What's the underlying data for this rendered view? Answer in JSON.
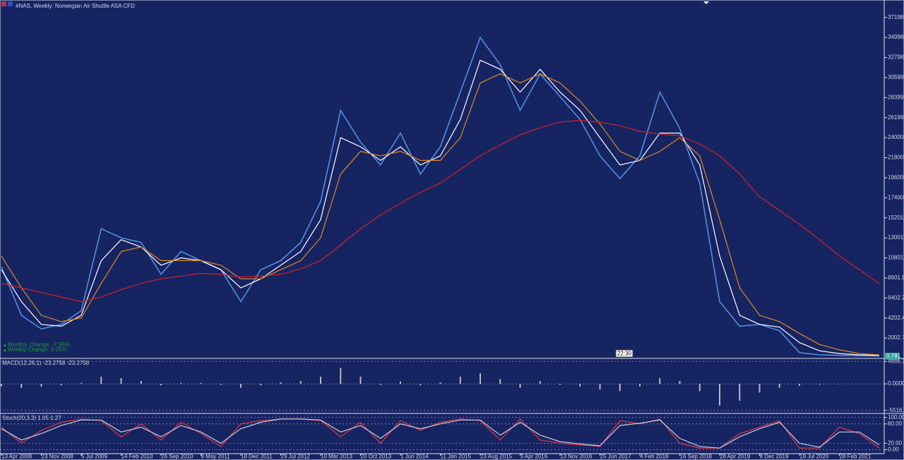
{
  "chart_data": [
    {
      "type": "line",
      "title": "#NAS, Weekly: Norwegian Air Shuttle ASA CFD",
      "categories": [
        "13 Apr 2008",
        null,
        "23 Nov 2008",
        null,
        "5 Jul 2009",
        null,
        "14 Feb 2010",
        null,
        "26 Sep 2010",
        null,
        "8 May 2011",
        null,
        "18 Dec 2011",
        null,
        "29 Jul 2012",
        null,
        "10 Mar 2013",
        null,
        "20 Oct 2013",
        null,
        "1 Jun 2014",
        null,
        "11 Jan 2015",
        null,
        "23 Aug 2015",
        null,
        "3 Apr 2016",
        null,
        "13 Nov 2016",
        null,
        "25 Jun 2017",
        null,
        "4 Feb 2018",
        null,
        "16 Sep 2018",
        null,
        "28 Apr 2019",
        null,
        "8 Dec 2019",
        null,
        "19 Jul 2020",
        null,
        "28 Feb 2021",
        null,
        null
      ],
      "series": [
        {
          "color": "#4f8fe0",
          "values": [
            9800,
            4500,
            3000,
            3500,
            5000,
            14000,
            13000,
            12500,
            9000,
            11500,
            10500,
            9500,
            6000,
            9500,
            10500,
            12500,
            17000,
            27000,
            23500,
            21000,
            24500,
            20000,
            23000,
            29000,
            35000,
            32000,
            27000,
            31000,
            28500,
            26000,
            22000,
            19500,
            22000,
            29000,
            25000,
            19000,
            6000,
            3300,
            3500,
            2800,
            400,
            150,
            100,
            60,
            40
          ]
        },
        {
          "color": "#ffffff",
          "values": [
            9500,
            6000,
            3500,
            3300,
            4500,
            10500,
            12800,
            12000,
            10000,
            10800,
            10500,
            9500,
            7500,
            8500,
            10000,
            11500,
            15000,
            24000,
            23000,
            21500,
            23000,
            21000,
            22000,
            26000,
            32500,
            31500,
            29000,
            31500,
            29000,
            27000,
            24000,
            21000,
            21500,
            24500,
            24500,
            21000,
            11000,
            4500,
            3500,
            3200,
            1500,
            600,
            300,
            150,
            80
          ]
        },
        {
          "color": "#e08a1e",
          "values": [
            11000,
            7500,
            4500,
            3800,
            4200,
            8000,
            11500,
            12000,
            10500,
            10500,
            10500,
            10000,
            8500,
            8500,
            9500,
            10500,
            13000,
            20000,
            22500,
            22000,
            22500,
            21500,
            21500,
            24000,
            30000,
            31000,
            30000,
            31000,
            30000,
            28000,
            25500,
            22500,
            21500,
            22500,
            24000,
            22000,
            15000,
            7500,
            4500,
            3800,
            2500,
            1300,
            700,
            300,
            150
          ]
        },
        {
          "color": "#d0202a",
          "values": [
            8000,
            7500,
            7000,
            6500,
            6000,
            6500,
            7300,
            8000,
            8500,
            8800,
            9100,
            9000,
            8700,
            8800,
            9000,
            9600,
            10500,
            12200,
            14000,
            15500,
            16800,
            18000,
            19000,
            20500,
            22000,
            23200,
            24300,
            25100,
            25700,
            25900,
            25700,
            25300,
            24700,
            24400,
            24200,
            23300,
            22000,
            20000,
            17500,
            16000,
            14500,
            12800,
            11000,
            9500,
            8000
          ]
        }
      ],
      "ylim": [
        -80,
        38800
      ],
      "yticks": [
        2002.75,
        4202.48,
        6402.2,
        8601.93,
        10801.65,
        13001.38,
        15201.1,
        17400.83,
        19600.55,
        21800.28,
        {
          "value": 24000,
          "label": "24000.00"
        },
        26199.73,
        28399.45,
        30599.18,
        32798.9,
        34998.63,
        37198.35
      ],
      "grid": false,
      "changes": [
        "Monthly Change: -7.95%",
        "Weekly Change: 3.05%"
      ],
      "clock": "22:30",
      "last_price": 0.781
    },
    {
      "type": "bar",
      "title": "MACD(12,26,1) -23.2758 -23.2758",
      "color": "#b8b8c0",
      "values": [
        -500,
        -800,
        -600,
        -300,
        200,
        1500,
        1200,
        600,
        -300,
        200,
        200,
        -200,
        -800,
        -300,
        300,
        600,
        1500,
        3300,
        1500,
        -200,
        500,
        -300,
        300,
        1500,
        2200,
        1000,
        -800,
        600,
        -200,
        -600,
        -1200,
        -1500,
        -500,
        1200,
        600,
        -1500,
        -4500,
        -3500,
        -1800,
        -800,
        -400,
        -150,
        -60,
        -30,
        -20
      ],
      "ylim": [
        -6000,
        5000
      ],
      "yticks": [
        4666.38,
        {
          "value": 0,
          "label": "0.0000"
        },
        -5516.75
      ],
      "grid": true
    },
    {
      "type": "line",
      "title": "Stoch(20,3,3) 1.05 1.27",
      "series": [
        {
          "color": "#e03a48",
          "values": [
            70,
            20,
            60,
            85,
            95,
            90,
            40,
            80,
            30,
            85,
            50,
            10,
            80,
            90,
            95,
            95,
            90,
            40,
            85,
            20,
            90,
            60,
            85,
            95,
            90,
            30,
            95,
            30,
            20,
            15,
            10,
            90,
            80,
            95,
            20,
            5,
            5,
            50,
            70,
            90,
            5,
            5,
            70,
            50,
            5
          ]
        },
        {
          "color": "#c8cce0",
          "values": [
            65,
            30,
            50,
            75,
            92,
            92,
            55,
            70,
            40,
            75,
            55,
            20,
            65,
            85,
            95,
            95,
            92,
            55,
            75,
            35,
            80,
            65,
            80,
            92,
            92,
            45,
            85,
            45,
            25,
            18,
            12,
            75,
            82,
            92,
            35,
            10,
            5,
            40,
            65,
            85,
            20,
            8,
            55,
            55,
            15
          ]
        }
      ],
      "ylim": [
        -10,
        108
      ],
      "yticks": [
        {
          "value": 100,
          "label": "100.00"
        },
        {
          "value": 80,
          "label": "80.00"
        },
        {
          "value": 20,
          "label": "20.00"
        },
        {
          "value": 0,
          "label": "0.00"
        }
      ],
      "grid": true
    }
  ]
}
